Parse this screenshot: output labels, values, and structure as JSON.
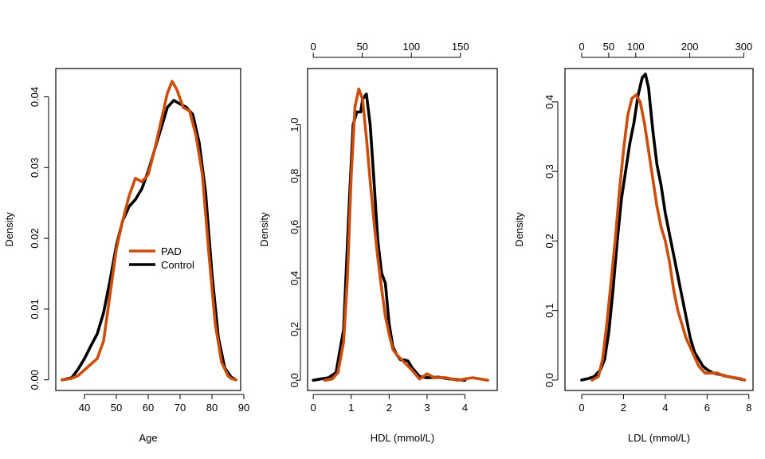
{
  "colors": {
    "pad": "#cc4e0c",
    "control": "#000000"
  },
  "chart_data": [
    {
      "type": "line",
      "xlabel": "Age",
      "ylabel": "Density",
      "xlim": [
        31,
        89
      ],
      "ylim": [
        -0.0015,
        0.044
      ],
      "x_ticks": [
        40,
        50,
        60,
        70,
        80,
        90
      ],
      "y_ticks": [
        0.0,
        0.01,
        0.02,
        0.03,
        0.04
      ],
      "y_tick_labels": [
        "0.00",
        "0.01",
        "0.02",
        "0.03",
        "0.04"
      ],
      "legend": {
        "position": "center-left",
        "entries": [
          {
            "label": "PAD",
            "color": "#cc4e0c"
          },
          {
            "label": "Control",
            "color": "#000000"
          }
        ]
      },
      "series": [
        {
          "name": "PAD",
          "color": "#cc4e0c",
          "x": [
            33,
            36,
            38,
            40,
            42,
            44,
            46,
            48,
            50,
            52,
            54,
            56,
            58,
            60,
            62,
            64,
            66,
            67.5,
            69,
            71,
            73,
            75,
            77,
            79,
            81,
            83,
            85,
            86,
            87.5
          ],
          "y": [
            0,
            0.0002,
            0.0006,
            0.0014,
            0.0022,
            0.003,
            0.0055,
            0.012,
            0.0185,
            0.0225,
            0.026,
            0.0285,
            0.028,
            0.029,
            0.0325,
            0.0365,
            0.0405,
            0.0422,
            0.041,
            0.0385,
            0.038,
            0.0345,
            0.029,
            0.018,
            0.008,
            0.0025,
            0.0006,
            0.0002,
            0
          ]
        },
        {
          "name": "Control",
          "color": "#000000",
          "x": [
            33,
            36,
            38,
            40,
            42,
            44,
            46,
            48,
            50,
            52,
            54,
            56,
            58,
            60,
            62,
            64,
            66,
            68,
            70,
            72,
            74,
            76,
            78,
            80,
            82,
            84,
            86,
            87.5
          ],
          "y": [
            0,
            0.0003,
            0.0015,
            0.003,
            0.0048,
            0.0065,
            0.0095,
            0.014,
            0.019,
            0.0225,
            0.0245,
            0.0255,
            0.027,
            0.0295,
            0.0325,
            0.0355,
            0.0385,
            0.0395,
            0.039,
            0.0385,
            0.0375,
            0.0335,
            0.0265,
            0.015,
            0.006,
            0.0017,
            0.0004,
            0
          ]
        }
      ]
    },
    {
      "type": "line",
      "xlabel": "HDL (mmol/L)",
      "ylabel": "Density",
      "xlim": [
        -0.15,
        4.85
      ],
      "ylim": [
        -0.04,
        1.22
      ],
      "x_ticks": [
        0,
        1,
        2,
        3,
        4
      ],
      "y_ticks": [
        0.0,
        0.2,
        0.4,
        0.6,
        0.8,
        1.0
      ],
      "y_tick_labels": [
        "0.0",
        "0.2",
        "0.4",
        "0.6",
        "0.8",
        "1.0"
      ],
      "top_axis": {
        "ticks": [
          0,
          50,
          100,
          150
        ],
        "scale": 0.02586
      },
      "series": [
        {
          "name": "PAD",
          "color": "#cc4e0c",
          "x": [
            0.3,
            0.5,
            0.65,
            0.8,
            0.9,
            1.0,
            1.1,
            1.2,
            1.3,
            1.4,
            1.5,
            1.6,
            1.7,
            1.8,
            1.9,
            2.0,
            2.1,
            2.2,
            2.4,
            2.6,
            2.8,
            3.0,
            3.2,
            3.5,
            3.8,
            4.0,
            4.2,
            4.4,
            4.6
          ],
          "y": [
            0,
            0.005,
            0.03,
            0.15,
            0.4,
            0.8,
            1.07,
            1.14,
            1.1,
            0.95,
            0.78,
            0.62,
            0.48,
            0.36,
            0.25,
            0.18,
            0.12,
            0.1,
            0.07,
            0.04,
            0.005,
            0.025,
            0.01,
            0.01,
            0,
            0.005,
            0.01,
            0.005,
            0
          ]
        },
        {
          "name": "Control",
          "color": "#000000",
          "x": [
            0,
            0.2,
            0.4,
            0.6,
            0.8,
            0.95,
            1.05,
            1.15,
            1.25,
            1.3,
            1.4,
            1.5,
            1.6,
            1.7,
            1.8,
            1.9,
            2.0,
            2.1,
            2.2,
            2.3,
            2.4,
            2.5,
            2.6,
            2.8,
            3.0,
            3.3,
            3.6,
            4.0
          ],
          "y": [
            0,
            0.005,
            0.01,
            0.03,
            0.2,
            0.7,
            1.0,
            1.05,
            1.05,
            1.1,
            1.12,
            1.0,
            0.78,
            0.55,
            0.42,
            0.38,
            0.22,
            0.13,
            0.1,
            0.08,
            0.08,
            0.075,
            0.05,
            0.015,
            0.01,
            0.012,
            0.005,
            0
          ]
        }
      ]
    },
    {
      "type": "line",
      "xlabel": "LDL (mmol/L)",
      "ylabel": "Density",
      "xlim": [
        -0.8,
        8.2
      ],
      "ylim": [
        -0.015,
        0.448
      ],
      "x_ticks": [
        0,
        2,
        4,
        6,
        8
      ],
      "y_ticks": [
        0.0,
        0.1,
        0.2,
        0.3,
        0.4
      ],
      "y_tick_labels": [
        "0.0",
        "0.1",
        "0.2",
        "0.3",
        "0.4"
      ],
      "top_axis": {
        "ticks": [
          0,
          50,
          100,
          200,
          300
        ],
        "scale": 0.02586
      },
      "series": [
        {
          "name": "PAD",
          "color": "#cc4e0c",
          "x": [
            0.5,
            0.8,
            1.0,
            1.2,
            1.4,
            1.6,
            1.8,
            2.0,
            2.2,
            2.4,
            2.6,
            2.8,
            3.0,
            3.2,
            3.4,
            3.6,
            3.8,
            4.0,
            4.2,
            4.4,
            4.6,
            4.8,
            5.0,
            5.3,
            5.6,
            5.9,
            6.2,
            6.5,
            6.8,
            7.2,
            7.6,
            7.8
          ],
          "y": [
            0,
            0.005,
            0.03,
            0.08,
            0.14,
            0.2,
            0.27,
            0.33,
            0.38,
            0.405,
            0.41,
            0.4,
            0.37,
            0.33,
            0.29,
            0.25,
            0.22,
            0.2,
            0.17,
            0.13,
            0.1,
            0.08,
            0.06,
            0.04,
            0.02,
            0.01,
            0.01,
            0.01,
            0.006,
            0.004,
            0.002,
            0
          ]
        },
        {
          "name": "Control",
          "color": "#000000",
          "x": [
            0,
            0.3,
            0.6,
            0.9,
            1.1,
            1.3,
            1.5,
            1.7,
            1.9,
            2.1,
            2.3,
            2.5,
            2.7,
            2.9,
            3.05,
            3.2,
            3.4,
            3.6,
            3.8,
            4.0,
            4.2,
            4.4,
            4.6,
            4.8,
            5.0,
            5.2,
            5.4,
            5.6,
            5.8,
            6.0,
            6.3,
            6.6,
            7.0,
            7.5,
            7.8
          ],
          "y": [
            0,
            0.002,
            0.005,
            0.015,
            0.03,
            0.07,
            0.13,
            0.2,
            0.26,
            0.3,
            0.34,
            0.37,
            0.41,
            0.435,
            0.44,
            0.42,
            0.36,
            0.31,
            0.28,
            0.24,
            0.21,
            0.18,
            0.15,
            0.12,
            0.09,
            0.06,
            0.04,
            0.03,
            0.02,
            0.015,
            0.01,
            0.008,
            0.005,
            0.002,
            0
          ]
        }
      ]
    }
  ]
}
